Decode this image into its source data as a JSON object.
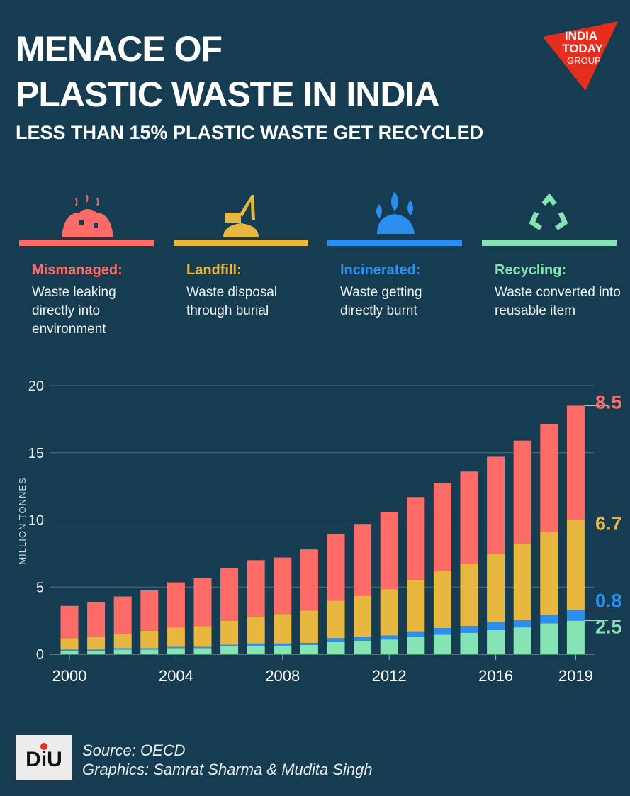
{
  "header": {
    "title_line1": "MENACE OF",
    "title_line2": "PLASTIC WASTE IN INDIA",
    "subtitle": "LESS THAN 15% PLASTIC WASTE GET RECYCLED",
    "logo_text": [
      "INDIA",
      "TODAY",
      "GROUP"
    ]
  },
  "categories": [
    {
      "name": "Mismanaged:",
      "desc": "Waste leaking directly into environment",
      "color": "#ff6b67",
      "icon": "garbage-pile-icon"
    },
    {
      "name": "Landfill:",
      "desc": "Waste disposal through burial",
      "color": "#e8b740",
      "icon": "excavator-icon"
    },
    {
      "name": "Incinerated:",
      "desc": "Waste getting directly burnt",
      "color": "#2b8fef",
      "icon": "burning-waste-icon"
    },
    {
      "name": "Recycling:",
      "desc": "Waste converted into reusable item",
      "color": "#86e3b3",
      "icon": "recycle-icon"
    }
  ],
  "chart_data": {
    "type": "bar",
    "stacked": true,
    "ylabel": "MILLION TONNES",
    "ylim": [
      0,
      20
    ],
    "yticks": [
      0,
      5,
      10,
      15,
      20
    ],
    "categories": [
      "2000",
      "2001",
      "2002",
      "2003",
      "2004",
      "2005",
      "2006",
      "2007",
      "2008",
      "2009",
      "2010",
      "2011",
      "2012",
      "2013",
      "2014",
      "2015",
      "2016",
      "2017",
      "2018",
      "2019"
    ],
    "xtick_labels": [
      "2000",
      "2004",
      "2008",
      "2012",
      "2016",
      "2019"
    ],
    "grid": true,
    "series": [
      {
        "name": "Recycling",
        "color": "#86e3b3",
        "values": [
          0.25,
          0.25,
          0.35,
          0.35,
          0.45,
          0.45,
          0.6,
          0.65,
          0.65,
          0.7,
          0.9,
          1.0,
          1.1,
          1.3,
          1.45,
          1.6,
          1.8,
          2.0,
          2.3,
          2.5
        ]
      },
      {
        "name": "Incinerated",
        "color": "#2b8fef",
        "values": [
          0.1,
          0.1,
          0.1,
          0.1,
          0.1,
          0.1,
          0.1,
          0.15,
          0.15,
          0.15,
          0.3,
          0.3,
          0.3,
          0.4,
          0.5,
          0.5,
          0.6,
          0.55,
          0.65,
          0.8
        ]
      },
      {
        "name": "Landfill",
        "color": "#e8b740",
        "values": [
          0.85,
          0.95,
          1.05,
          1.3,
          1.45,
          1.55,
          1.8,
          2.0,
          2.2,
          2.4,
          2.8,
          3.05,
          3.45,
          3.85,
          4.25,
          4.65,
          5.05,
          5.7,
          6.15,
          6.7
        ]
      },
      {
        "name": "Mismanaged",
        "color": "#ff6b67",
        "values": [
          2.4,
          2.55,
          2.8,
          3.0,
          3.35,
          3.55,
          3.9,
          4.2,
          4.2,
          4.55,
          4.95,
          5.35,
          5.75,
          6.15,
          6.55,
          6.85,
          7.25,
          7.65,
          8.05,
          8.5
        ]
      }
    ],
    "annotations": [
      {
        "series": "Mismanaged",
        "label": "8.5",
        "color": "#ff6b67"
      },
      {
        "series": "Landfill",
        "label": "6.7",
        "color": "#e8b740"
      },
      {
        "series": "Incinerated",
        "label": "0.8",
        "color": "#2b8fef"
      },
      {
        "series": "Recycling",
        "label": "2.5",
        "color": "#86e3b3"
      }
    ]
  },
  "footer": {
    "source": "Source: OECD",
    "graphics": "Graphics: Samrat Sharma & Mudita Singh",
    "logo_text": "DIU"
  }
}
